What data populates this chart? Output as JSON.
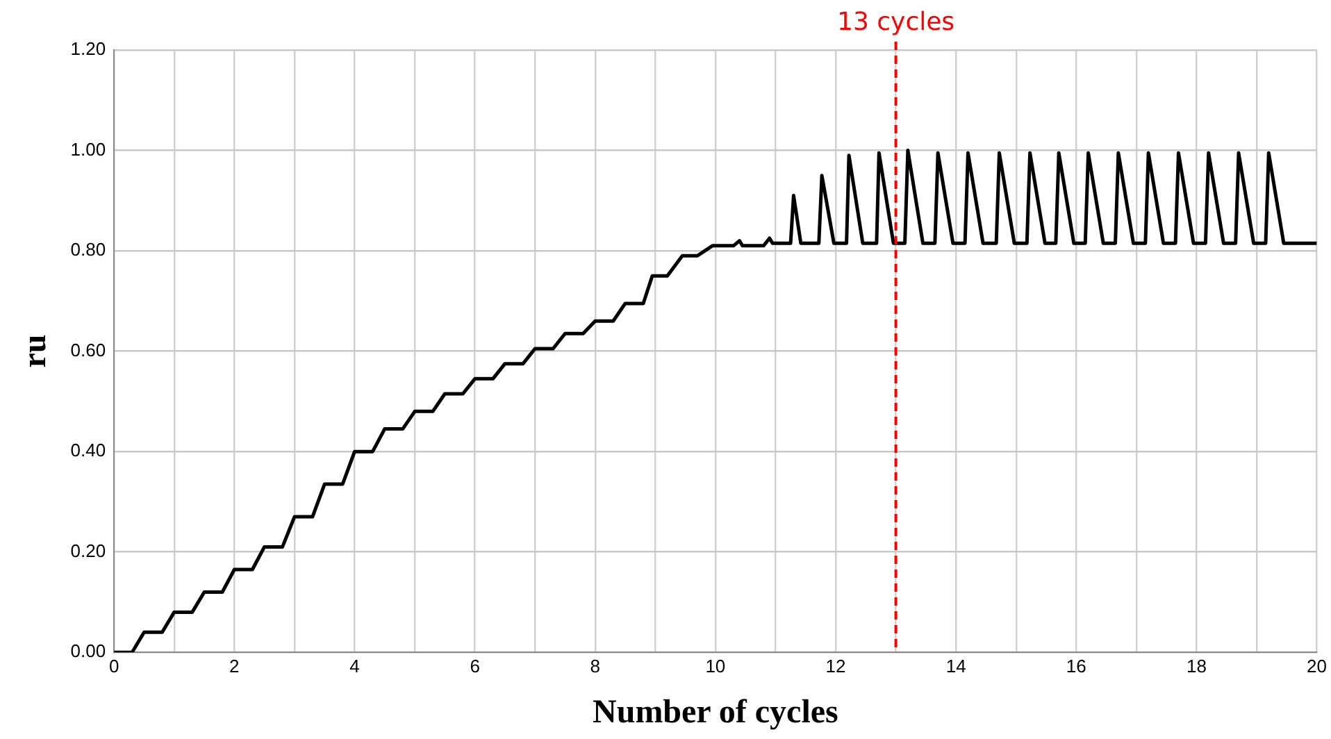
{
  "chart_data": {
    "type": "line",
    "xlabel": "Number of cycles",
    "ylabel": "ru",
    "xlim": [
      0,
      20
    ],
    "xticks": [
      0,
      {
        "value": 1,
        "label": null
      },
      2,
      {
        "value": 3,
        "label": null
      },
      4,
      {
        "value": 5,
        "label": null
      },
      6,
      {
        "value": 7,
        "label": null
      },
      8,
      {
        "value": 9,
        "label": null
      },
      10,
      {
        "value": 11,
        "label": null
      },
      12,
      {
        "value": 13,
        "label": null
      },
      14,
      {
        "value": 15,
        "label": null
      },
      16,
      {
        "value": 17,
        "label": null
      },
      18,
      {
        "value": 19,
        "label": null
      },
      20
    ],
    "ylim": [
      0,
      1.2
    ],
    "yticks": [
      {
        "value": 0,
        "label": "0.00"
      },
      {
        "value": 0.2,
        "label": "0.20"
      },
      {
        "value": 0.4,
        "label": "0.40"
      },
      {
        "value": 0.6,
        "label": "0.60"
      },
      {
        "value": 0.8,
        "label": "0.80"
      },
      {
        "value": 1.0,
        "label": "1.00"
      },
      {
        "value": 1.2,
        "label": "1.20"
      }
    ],
    "grid": true,
    "legend": false,
    "marker": "none",
    "line_style": "solid",
    "ref_lines": [
      {
        "axis": "x",
        "value": 13,
        "label": "13 cycles",
        "color": "#ff0000",
        "line_style": "dashed"
      }
    ],
    "series": [
      {
        "color": "#000000",
        "x": [
          0,
          0.3,
          0.5,
          0.8,
          1.0,
          1.3,
          1.5,
          1.8,
          2.0,
          2.3,
          2.5,
          2.8,
          3.0,
          3.3,
          3.5,
          3.8,
          4.0,
          4.3,
          4.5,
          4.8,
          5.0,
          5.3,
          5.5,
          5.8,
          6.0,
          6.3,
          6.5,
          6.8,
          7.0,
          7.3,
          7.5,
          7.8,
          8.0,
          8.3,
          8.5,
          8.8,
          8.95,
          9.2,
          9.45,
          9.7,
          9.95,
          10.3,
          10.4,
          10.45,
          10.8,
          10.9,
          10.95,
          11.25,
          11.3,
          11.42,
          11.72,
          11.77,
          11.97,
          12.18,
          12.22,
          12.45,
          12.68,
          12.72,
          12.96,
          13.15,
          13.2,
          13.45,
          13.65,
          13.7,
          13.95,
          14.15,
          14.2,
          14.45,
          14.67,
          14.72,
          14.97,
          15.18,
          15.23,
          15.48,
          15.66,
          15.71,
          15.96,
          16.15,
          16.2,
          16.45,
          16.65,
          16.7,
          16.95,
          17.15,
          17.2,
          17.45,
          17.65,
          17.7,
          17.95,
          18.15,
          18.2,
          18.45,
          18.65,
          18.7,
          18.95,
          19.15,
          19.2,
          19.45,
          20
        ],
        "values": [
          0,
          0,
          0.04,
          0.04,
          0.08,
          0.08,
          0.12,
          0.12,
          0.165,
          0.165,
          0.21,
          0.21,
          0.27,
          0.27,
          0.335,
          0.335,
          0.4,
          0.4,
          0.445,
          0.445,
          0.48,
          0.48,
          0.515,
          0.515,
          0.545,
          0.545,
          0.575,
          0.575,
          0.605,
          0.605,
          0.635,
          0.635,
          0.66,
          0.66,
          0.695,
          0.695,
          0.75,
          0.75,
          0.79,
          0.79,
          0.81,
          0.81,
          0.82,
          0.81,
          0.81,
          0.825,
          0.815,
          0.815,
          0.91,
          0.815,
          0.815,
          0.95,
          0.815,
          0.815,
          0.99,
          0.815,
          0.815,
          0.995,
          0.815,
          0.815,
          1.0,
          0.815,
          0.815,
          0.995,
          0.815,
          0.815,
          0.995,
          0.815,
          0.815,
          0.995,
          0.815,
          0.815,
          0.995,
          0.815,
          0.815,
          0.995,
          0.815,
          0.815,
          0.995,
          0.815,
          0.815,
          0.995,
          0.815,
          0.815,
          0.995,
          0.815,
          0.815,
          0.995,
          0.815,
          0.815,
          0.995,
          0.815,
          0.815,
          0.995,
          0.815,
          0.815,
          0.995,
          0.815,
          0.815
        ]
      }
    ]
  }
}
